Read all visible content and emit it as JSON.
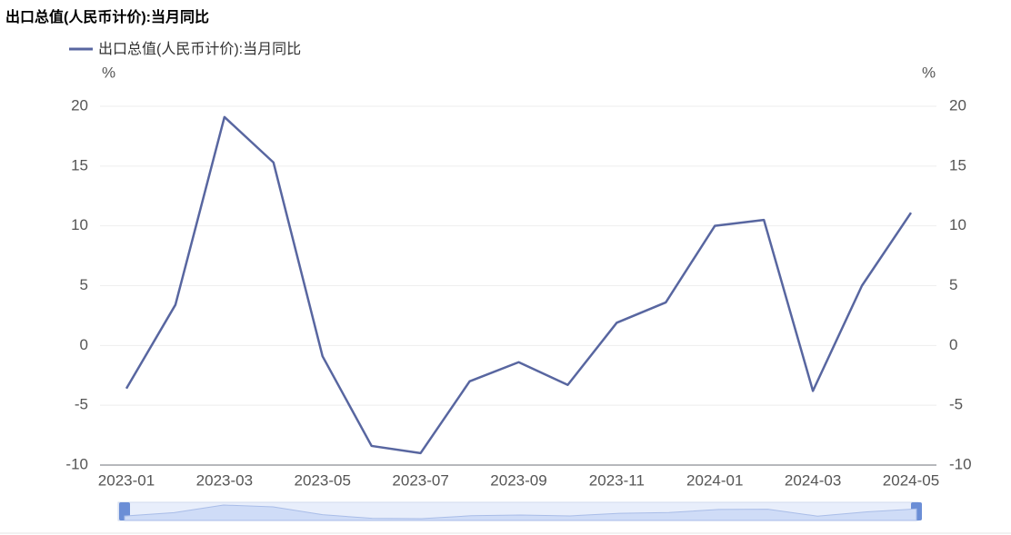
{
  "chart_data": {
    "type": "line",
    "title": "出口总值(人民币计价):当月同比",
    "y_unit": "%",
    "y2_unit": "%",
    "categories": [
      "2023-01",
      null,
      "2023-03",
      null,
      "2023-05",
      null,
      "2023-07",
      null,
      "2023-09",
      null,
      "2023-11",
      null,
      "2024-01",
      null,
      "2024-03",
      null,
      "2024-05"
    ],
    "series": [
      {
        "name": "出口总值(人民币计价):当月同比",
        "color": "#5866a0",
        "values": [
          -3.6,
          3.4,
          19.1,
          15.3,
          -0.9,
          -8.4,
          -9.0,
          -3.0,
          -1.4,
          -3.3,
          1.9,
          3.6,
          10.0,
          10.5,
          -3.8,
          5.0,
          11.1
        ]
      }
    ],
    "ylim": [
      -10,
      20
    ],
    "yticks": [
      -10,
      -5,
      0,
      5,
      10,
      15,
      20
    ],
    "y2lim": [
      -10,
      20
    ],
    "y2ticks": [
      -10,
      -5,
      0,
      5,
      10,
      15,
      20
    ],
    "grid": true
  }
}
